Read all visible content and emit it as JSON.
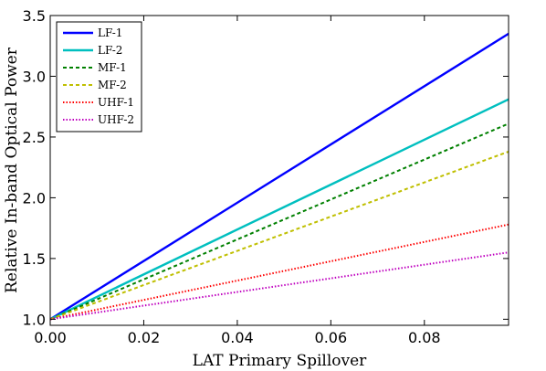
{
  "chart_data": {
    "type": "line",
    "xlabel": "LAT Primary Spillover",
    "ylabel": "Relative In-band Optical Power",
    "xlim": [
      0.0,
      0.098
    ],
    "ylim": [
      0.95,
      3.5
    ],
    "xticks": [
      0.0,
      0.02,
      0.04,
      0.06,
      0.08
    ],
    "xtick_labels": [
      "0.00",
      "0.02",
      "0.04",
      "0.06",
      "0.08"
    ],
    "yticks": [
      1.0,
      1.5,
      2.0,
      2.5,
      3.0,
      3.5
    ],
    "ytick_labels": [
      "1.0",
      "1.5",
      "2.0",
      "2.5",
      "3.0",
      "3.5"
    ],
    "grid": false,
    "legend_position": "top-left",
    "series": [
      {
        "name": "LF-1",
        "color": "#0000ff",
        "style": "solid",
        "x": [
          0.0,
          0.098
        ],
        "y": [
          1.0,
          3.35
        ]
      },
      {
        "name": "LF-2",
        "color": "#00bfbf",
        "style": "solid",
        "x": [
          0.0,
          0.098
        ],
        "y": [
          1.0,
          2.81
        ]
      },
      {
        "name": "MF-1",
        "color": "#008000",
        "style": "dashed",
        "x": [
          0.0,
          0.098
        ],
        "y": [
          1.0,
          2.61
        ]
      },
      {
        "name": "MF-2",
        "color": "#bfbf00",
        "style": "dashed",
        "x": [
          0.0,
          0.098
        ],
        "y": [
          1.0,
          2.38
        ]
      },
      {
        "name": "UHF-1",
        "color": "#ff0000",
        "style": "dotted",
        "x": [
          0.0,
          0.098
        ],
        "y": [
          1.0,
          1.78
        ]
      },
      {
        "name": "UHF-2",
        "color": "#bf00bf",
        "style": "dotted",
        "x": [
          0.0,
          0.098
        ],
        "y": [
          1.0,
          1.55
        ]
      }
    ]
  }
}
